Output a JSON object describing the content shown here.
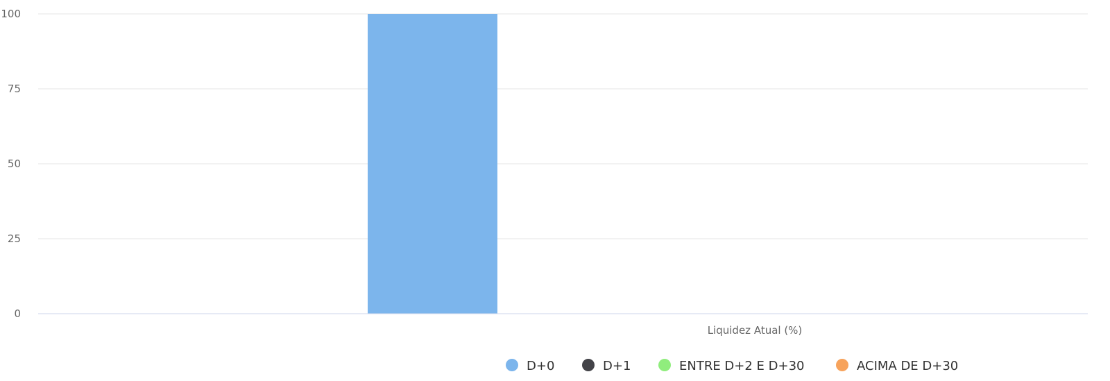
{
  "chart_data": {
    "type": "bar",
    "categories": [
      "Liquidez Atual (%)"
    ],
    "xlabel": "Liquidez Atual (%)",
    "ylim": [
      0,
      100
    ],
    "yticks": [
      0,
      25,
      50,
      75,
      100
    ],
    "grid": true,
    "legend_position": "bottom",
    "series": [
      {
        "name": "D+0",
        "color": "#7cb5ec",
        "values": [
          100
        ]
      },
      {
        "name": "D+1",
        "color": "#434348",
        "values": [
          0
        ]
      },
      {
        "name": "ENTRE D+2 E D+30",
        "color": "#90ed7d",
        "values": [
          0
        ]
      },
      {
        "name": "ACIMA DE D+30",
        "color": "#f7a35c",
        "values": [
          0
        ]
      }
    ]
  }
}
